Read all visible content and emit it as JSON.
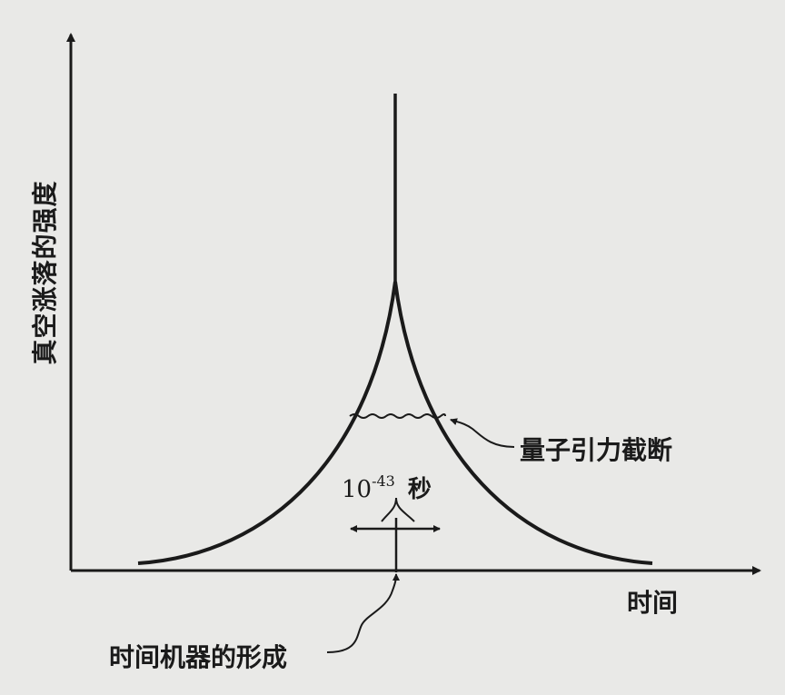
{
  "diagram": {
    "y_axis_label": "真空涨落的强度",
    "x_axis_label": "时间",
    "cutoff_label": "量子引力截断",
    "machine_label": "时间机器的形成",
    "tick_base": "10",
    "tick_exponent": "-43",
    "tick_unit": "秒"
  },
  "colors": {
    "background": "#e9e9e7",
    "ink": "#1a1a1a"
  }
}
